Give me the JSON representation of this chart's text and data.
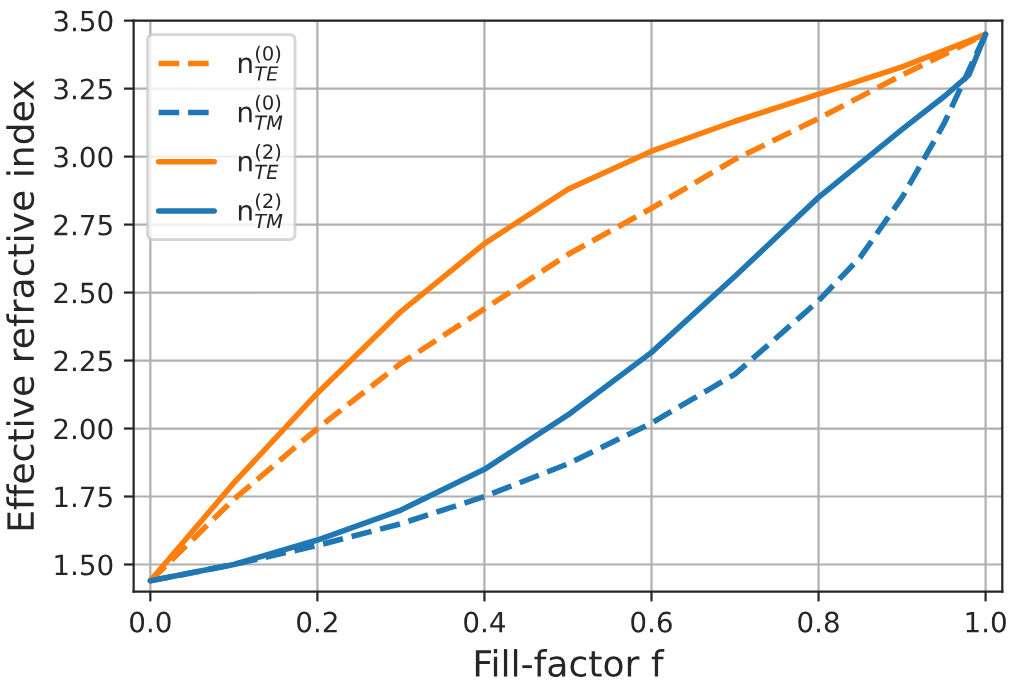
{
  "chart_data": {
    "type": "line",
    "xlabel": "Fill-factor f",
    "ylabel": "Effective refractive index",
    "xlim": [
      -0.02,
      1.02
    ],
    "ylim": [
      1.4,
      3.5
    ],
    "xticks": [
      {
        "value": 0,
        "label": "0.0"
      },
      0.2,
      0.4,
      0.6,
      0.8,
      {
        "value": 1,
        "label": "1.0"
      }
    ],
    "yticks": [
      {
        "value": 1.5,
        "label": "1.50"
      },
      {
        "value": 1.75,
        "label": "1.75"
      },
      {
        "value": 2,
        "label": "2.00"
      },
      2.25,
      {
        "value": 2.5,
        "label": "2.50"
      },
      2.75,
      {
        "value": 3,
        "label": "3.00"
      },
      3.25,
      {
        "value": 3.5,
        "label": "3.50"
      }
    ],
    "grid": true,
    "legend": "top left",
    "series": [
      {
        "name": "n$^{(0)}$$_{TE}$",
        "color": "#ff7f0e",
        "line_style": "dashed",
        "x": [
          0,
          0.1,
          0.2,
          0.3,
          0.4,
          0.5,
          0.6,
          0.7,
          0.8,
          0.9,
          1.0
        ],
        "values": [
          1.44,
          1.74,
          2.0,
          2.24,
          2.44,
          2.64,
          2.81,
          2.99,
          3.14,
          3.3,
          3.45
        ]
      },
      {
        "name": "n$^{(0)}$$_{TM}$",
        "color": "#1f77b4",
        "line_style": "dashed",
        "x": [
          0,
          0.1,
          0.2,
          0.3,
          0.4,
          0.5,
          0.6,
          0.7,
          0.8,
          0.85,
          0.9,
          0.95,
          1.0
        ],
        "values": [
          1.44,
          1.5,
          1.57,
          1.65,
          1.75,
          1.87,
          2.02,
          2.2,
          2.47,
          2.63,
          2.85,
          3.12,
          3.45
        ]
      },
      {
        "name": "n$^{(2)}$$_{TE}$",
        "color": "#ff7f0e",
        "line_style": "solid",
        "x": [
          0,
          0.1,
          0.2,
          0.3,
          0.4,
          0.5,
          0.6,
          0.7,
          0.8,
          0.9,
          1.0
        ],
        "values": [
          1.44,
          1.8,
          2.13,
          2.43,
          2.68,
          2.88,
          3.02,
          3.13,
          3.23,
          3.33,
          3.45
        ]
      },
      {
        "name": "n$^{(2)}$$_{TM}$",
        "color": "#1f77b4",
        "line_style": "solid",
        "x": [
          0,
          0.1,
          0.2,
          0.3,
          0.4,
          0.5,
          0.6,
          0.7,
          0.8,
          0.9,
          0.95,
          0.98,
          1.0
        ],
        "values": [
          1.44,
          1.5,
          1.59,
          1.7,
          1.85,
          2.05,
          2.28,
          2.56,
          2.85,
          3.1,
          3.22,
          3.3,
          3.45
        ]
      }
    ]
  }
}
